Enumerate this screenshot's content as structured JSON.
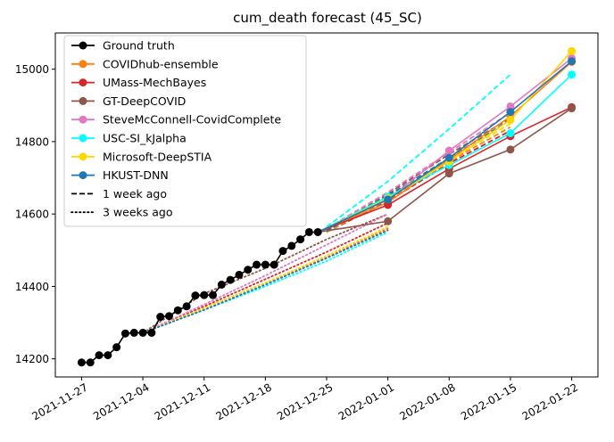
{
  "chart_data": {
    "type": "line",
    "title": "cum_death forecast (45_SC)",
    "xlabel": "",
    "ylabel": "",
    "x_type": "date",
    "xlim": [
      "2021-11-24",
      "2022-01-25"
    ],
    "ylim": [
      14150,
      15100
    ],
    "x_ticks": [
      "2021-11-27",
      "2021-12-04",
      "2021-12-11",
      "2021-12-18",
      "2021-12-25",
      "2022-01-01",
      "2022-01-08",
      "2022-01-15",
      "2022-01-22"
    ],
    "y_ticks": [
      14200,
      14400,
      14600,
      14800,
      15000
    ],
    "x_tick_rotation": 30,
    "grid": false,
    "legend_position": "top-left",
    "legend": [
      {
        "label": "Ground truth",
        "color": "#000000",
        "style": "solid",
        "marker": true
      },
      {
        "label": "COVIDhub-ensemble",
        "color": "#ff7f0e",
        "style": "solid",
        "marker": true
      },
      {
        "label": "UMass-MechBayes",
        "color": "#d62728",
        "style": "solid",
        "marker": true
      },
      {
        "label": "GT-DeepCOVID",
        "color": "#8c564b",
        "style": "solid",
        "marker": true
      },
      {
        "label": "SteveMcConnell-CovidComplete",
        "color": "#e377c2",
        "style": "solid",
        "marker": true
      },
      {
        "label": "USC-SI_kJalpha",
        "color": "#00ffff",
        "style": "solid",
        "marker": true
      },
      {
        "label": "Microsoft-DeepSTIA",
        "color": "#ffd700",
        "style": "solid",
        "marker": true
      },
      {
        "label": "HKUST-DNN",
        "color": "#1f77b4",
        "style": "solid",
        "marker": true
      },
      {
        "label": "1 week ago",
        "color": "#000000",
        "style": "dashed",
        "marker": false
      },
      {
        "label": "3 weeks ago",
        "color": "#000000",
        "style": "dotted",
        "marker": false
      }
    ],
    "ground_truth": {
      "x": [
        "2021-11-27",
        "2021-11-28",
        "2021-11-29",
        "2021-11-30",
        "2021-12-01",
        "2021-12-02",
        "2021-12-03",
        "2021-12-04",
        "2021-12-05",
        "2021-12-06",
        "2021-12-07",
        "2021-12-08",
        "2021-12-09",
        "2021-12-10",
        "2021-12-11",
        "2021-12-12",
        "2021-12-13",
        "2021-12-14",
        "2021-12-15",
        "2021-12-16",
        "2021-12-17",
        "2021-12-18",
        "2021-12-19",
        "2021-12-20",
        "2021-12-21",
        "2021-12-22",
        "2021-12-23",
        "2021-12-24"
      ],
      "y": [
        14190,
        14190,
        14210,
        14210,
        14232,
        14270,
        14272,
        14272,
        14272,
        14316,
        14318,
        14334,
        14345,
        14375,
        14376,
        14376,
        14405,
        14418,
        14432,
        14446,
        14460,
        14460,
        14460,
        14498,
        14512,
        14530,
        14550,
        14550
      ],
      "color": "#000000"
    },
    "forecasts": [
      {
        "name": "COVIDhub-ensemble",
        "color": "#ff7f0e",
        "x": [
          "2022-01-01",
          "2022-01-08",
          "2022-01-15",
          "2022-01-22"
        ],
        "y": [
          14632,
          14750,
          14870,
          15020
        ]
      },
      {
        "name": "UMass-MechBayes",
        "color": "#d62728",
        "x": [
          "2022-01-01",
          "2022-01-08",
          "2022-01-15",
          "2022-01-22"
        ],
        "y": [
          14625,
          14725,
          14815,
          14895
        ]
      },
      {
        "name": "GT-DeepCOVID",
        "color": "#8c564b",
        "x": [
          "2022-01-01",
          "2022-01-08",
          "2022-01-15",
          "2022-01-22"
        ],
        "y": [
          14580,
          14712,
          14778,
          14892
        ]
      },
      {
        "name": "SteveMcConnell-CovidComplete",
        "color": "#e377c2",
        "x": [
          "2022-01-01",
          "2022-01-08",
          "2022-01-15",
          "2022-01-22"
        ],
        "y": [
          14640,
          14775,
          14897,
          15030
        ]
      },
      {
        "name": "USC-SI_kJalpha",
        "color": "#00ffff",
        "x": [
          "2022-01-01",
          "2022-01-08",
          "2022-01-15",
          "2022-01-22"
        ],
        "y": [
          14648,
          14735,
          14823,
          14985
        ]
      },
      {
        "name": "Microsoft-DeepSTIA",
        "color": "#ffd700",
        "x": [
          "2022-01-01",
          "2022-01-08",
          "2022-01-15",
          "2022-01-22"
        ],
        "y": [
          14643,
          14745,
          14860,
          15050
        ]
      },
      {
        "name": "HKUST-DNN",
        "color": "#1f77b4",
        "x": [
          "2022-01-01",
          "2022-01-08",
          "2022-01-15",
          "2022-01-22"
        ],
        "y": [
          14640,
          14755,
          14882,
          15022
        ]
      }
    ],
    "one_week_ago": [
      {
        "color": "#ff7f0e",
        "x": [
          "2021-12-25",
          "2022-01-01",
          "2022-01-08",
          "2022-01-15"
        ],
        "y": [
          14550,
          14640,
          14745,
          14840
        ]
      },
      {
        "color": "#d62728",
        "x": [
          "2021-12-25",
          "2022-01-01",
          "2022-01-08",
          "2022-01-15"
        ],
        "y": [
          14550,
          14635,
          14740,
          14830
        ]
      },
      {
        "color": "#8c564b",
        "x": [
          "2021-12-25",
          "2022-01-01",
          "2022-01-08",
          "2022-01-15"
        ],
        "y": [
          14555,
          14655,
          14765,
          14865
        ]
      },
      {
        "color": "#e377c2",
        "x": [
          "2021-12-25",
          "2022-01-01",
          "2022-01-08",
          "2022-01-15"
        ],
        "y": [
          14560,
          14660,
          14770,
          14880
        ]
      },
      {
        "color": "#00ffff",
        "x": [
          "2021-12-25",
          "2022-01-01",
          "2022-01-08",
          "2022-01-15"
        ],
        "y": [
          14565,
          14690,
          14835,
          14985
        ]
      },
      {
        "color": "#ffd700",
        "x": [
          "2021-12-25",
          "2022-01-01",
          "2022-01-08",
          "2022-01-15"
        ],
        "y": [
          14550,
          14645,
          14750,
          14850
        ]
      },
      {
        "color": "#1f77b4",
        "x": [
          "2021-12-25",
          "2022-01-01",
          "2022-01-08",
          "2022-01-15"
        ],
        "y": [
          14552,
          14650,
          14755,
          14860
        ]
      }
    ],
    "three_weeks_ago": [
      {
        "color": "#ff7f0e",
        "x": [
          "2021-12-04",
          "2021-12-11",
          "2021-12-18",
          "2021-12-25",
          "2022-01-01"
        ],
        "y": [
          14272,
          14340,
          14410,
          14480,
          14560
        ]
      },
      {
        "color": "#d62728",
        "x": [
          "2021-12-04",
          "2021-12-11",
          "2021-12-18",
          "2021-12-25",
          "2022-01-01"
        ],
        "y": [
          14272,
          14345,
          14420,
          14495,
          14575
        ]
      },
      {
        "color": "#8c564b",
        "x": [
          "2021-12-04",
          "2021-12-11",
          "2021-12-18",
          "2021-12-25",
          "2022-01-01"
        ],
        "y": [
          14272,
          14380,
          14450,
          14530,
          14600
        ]
      },
      {
        "color": "#e377c2",
        "x": [
          "2021-12-04",
          "2021-12-11",
          "2021-12-18",
          "2021-12-25",
          "2022-01-01"
        ],
        "y": [
          14272,
          14350,
          14430,
          14515,
          14600
        ]
      },
      {
        "color": "#00ffff",
        "x": [
          "2021-12-04",
          "2021-12-11",
          "2021-12-18",
          "2021-12-25",
          "2022-01-01"
        ],
        "y": [
          14272,
          14335,
          14400,
          14470,
          14550
        ]
      },
      {
        "color": "#ffd700",
        "x": [
          "2021-12-04",
          "2021-12-11",
          "2021-12-18",
          "2021-12-25",
          "2022-01-01"
        ],
        "y": [
          14272,
          14340,
          14410,
          14485,
          14565
        ]
      },
      {
        "color": "#1f77b4",
        "x": [
          "2021-12-04",
          "2021-12-11",
          "2021-12-18",
          "2021-12-25",
          "2022-01-01"
        ],
        "y": [
          14272,
          14335,
          14405,
          14478,
          14555
        ]
      }
    ]
  }
}
